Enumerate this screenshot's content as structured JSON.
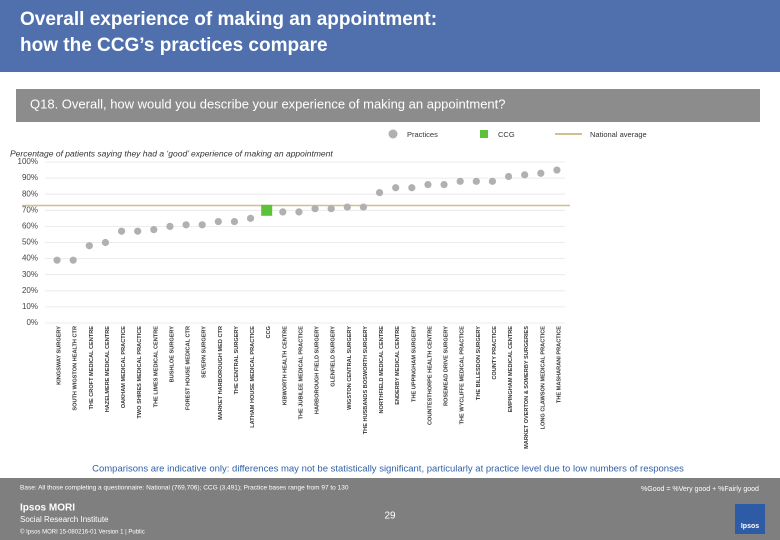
{
  "header": {
    "title_lines": [
      "Overall experience of making an appointment:",
      "how the CCG’s practices compare"
    ],
    "question": "Q18. Overall, how would you describe your experience of making an appointment?"
  },
  "chart_data": {
    "type": "dot",
    "subtitle": "Percentage of patients saying they had  a ‘good’ experience of making an appointment",
    "categories": [
      "KINGSWAY SURGERY",
      "SOUTH WIGSTON HEALTH CTR",
      "THE CROFT MEDICAL CENTRE",
      "HAZELMERE MEDICAL CENTRE",
      "OAKHAM MEDICAL PRACTICE",
      "TWO SHIRES MEDICAL PRACTICE",
      "THE LIMES MEDICAL CENTRE",
      "BUSHLOE SURGERY",
      "FOREST HOUSE MEDICAL CTR",
      "SEVERN SURGERY",
      "MARKET HARBOROUGH MED CTR",
      "THE CENTRAL SURGERY",
      "LATHAM HOUSE MEDICAL PRACTICE",
      "CCG",
      "KIBWORTH HEALTH CENTRE",
      "THE JUBILEE MEDICAL PRACTICE",
      "HARBOROUGH FIELD SURGERY",
      "GLENFIELD SURGERY",
      "WIGSTON CENTRAL SURGERY",
      "THE HUSBANDS BOSWORTH SURGERY",
      "NORTHFIELD MEDICAL CENTRE",
      "ENDERBY MEDICAL CENTRE",
      "THE UPPINGHAM SURGERY",
      "COUNTESTHORPE HEALTH CENTRE",
      "ROSEMEAD DRIVE SURGERY",
      "THE WYCLIFFE MEDICAL PRACTICE",
      "THE BILLESDON SURGERY",
      "COUNTY PRACTICE",
      "EMPINGHAM MEDICAL CENTRE",
      "MARKET OVERTON & SOMERBY SURGERIES",
      "LONG CLAWSON MEDICAL PRACTICE",
      "THE MASHARANI PRACTICE"
    ],
    "series": [
      {
        "name": "Practices",
        "color": "#b0b0b0",
        "marker": "circle",
        "values": [
          39,
          39,
          48,
          50,
          57,
          57,
          58,
          60,
          61,
          61,
          63,
          63,
          65,
          null,
          69,
          69,
          71,
          71,
          72,
          72,
          81,
          84,
          84,
          86,
          86,
          88,
          88,
          88,
          91,
          92,
          93,
          95
        ]
      },
      {
        "name": "CCG",
        "color": "#5cc23a",
        "marker": "square",
        "values": [
          null,
          null,
          null,
          null,
          null,
          null,
          null,
          null,
          null,
          null,
          null,
          null,
          null,
          70,
          null,
          null,
          null,
          null,
          null,
          null,
          null,
          null,
          null,
          null,
          null,
          null,
          null,
          null,
          null,
          null,
          null,
          null
        ]
      }
    ],
    "reference_line": {
      "name": "National average",
      "value": 73,
      "color": "#cfc08e"
    },
    "ylim": [
      0,
      100
    ],
    "yticks": [
      {
        "value": 0,
        "label": "0%"
      },
      {
        "value": 10,
        "label": "10%"
      },
      {
        "value": 20,
        "label": "20%"
      },
      {
        "value": 30,
        "label": "30%"
      },
      {
        "value": 40,
        "label": "40%"
      },
      {
        "value": 50,
        "label": "50%"
      },
      {
        "value": 60,
        "label": "60%"
      },
      {
        "value": 70,
        "label": "70%"
      },
      {
        "value": 80,
        "label": "80%"
      },
      {
        "value": 90,
        "label": "90%"
      },
      {
        "value": 100,
        "label": "100%"
      }
    ],
    "grid": true
  },
  "footer": {
    "note": "Comparisons are indicative only: differences may not be statistically significant, particularly at practice level due to low numbers of responses",
    "base": "Base: All those completing a questionnaire: National (769,706); CCG (3,491); Practice bases range from 97 to 130",
    "definition": "%Good = %Very good + %Fairly good",
    "page": "29",
    "brand": "Ipsos MORI",
    "brand_sub": "Social Research Institute",
    "copyright": "© Ipsos MORI    15-080216-01 Version 1 | Public",
    "logo": "Ipsos"
  }
}
